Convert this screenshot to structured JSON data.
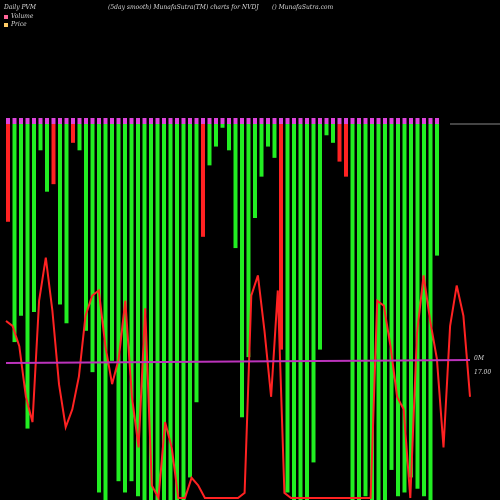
{
  "header": {
    "left": "Daily PVM",
    "center": "(5day smooth) MunafaSutra(TM) charts for NVDJ",
    "right": "() MunafaSutra.com"
  },
  "legend": [
    {
      "label": "Volume",
      "color": "#ff6699"
    },
    {
      "label": "Price",
      "color": "#ffcc66"
    }
  ],
  "colors": {
    "up": "#22ee22",
    "down": "#ff2222",
    "cap": "#dd44dd",
    "price_line": "#ff2222",
    "avg_line": "#bb33bb"
  },
  "chart_data": {
    "type": "bar",
    "title": "",
    "axis_labels": {
      "volume": "0M",
      "price": "17.00"
    },
    "grid": false,
    "bars": [
      {
        "dir": "down",
        "value": 0.26
      },
      {
        "dir": "up",
        "value": 0.58
      },
      {
        "dir": "up",
        "value": 0.51
      },
      {
        "dir": "up",
        "value": 0.81
      },
      {
        "dir": "up",
        "value": 0.5
      },
      {
        "dir": "up",
        "value": 0.07
      },
      {
        "dir": "up",
        "value": 0.18
      },
      {
        "dir": "down",
        "value": 0.16
      },
      {
        "dir": "up",
        "value": 0.48
      },
      {
        "dir": "up",
        "value": 0.53
      },
      {
        "dir": "down",
        "value": 0.05
      },
      {
        "dir": "up",
        "value": 0.07
      },
      {
        "dir": "up",
        "value": 0.55
      },
      {
        "dir": "up",
        "value": 0.66
      },
      {
        "dir": "up",
        "value": 0.98
      },
      {
        "dir": "up",
        "value": 1.0
      },
      {
        "dir": "up",
        "value": 0.63
      },
      {
        "dir": "up",
        "value": 0.95
      },
      {
        "dir": "up",
        "value": 0.98
      },
      {
        "dir": "up",
        "value": 0.95
      },
      {
        "dir": "up",
        "value": 0.99
      },
      {
        "dir": "up",
        "value": 1.0
      },
      {
        "dir": "up",
        "value": 1.0
      },
      {
        "dir": "up",
        "value": 1.0
      },
      {
        "dir": "up",
        "value": 1.0
      },
      {
        "dir": "up",
        "value": 1.0
      },
      {
        "dir": "up",
        "value": 1.0
      },
      {
        "dir": "up",
        "value": 1.0
      },
      {
        "dir": "up",
        "value": 0.94
      },
      {
        "dir": "up",
        "value": 0.74
      },
      {
        "dir": "down",
        "value": 0.3
      },
      {
        "dir": "up",
        "value": 0.11
      },
      {
        "dir": "up",
        "value": 0.06
      },
      {
        "dir": "up",
        "value": 0.01
      },
      {
        "dir": "up",
        "value": 0.07
      },
      {
        "dir": "up",
        "value": 0.33
      },
      {
        "dir": "up",
        "value": 0.78
      },
      {
        "dir": "up",
        "value": 0.62
      },
      {
        "dir": "up",
        "value": 0.25
      },
      {
        "dir": "up",
        "value": 0.14
      },
      {
        "dir": "up",
        "value": 0.06
      },
      {
        "dir": "up",
        "value": 0.09
      },
      {
        "dir": "down",
        "value": 0.6
      },
      {
        "dir": "up",
        "value": 0.98
      },
      {
        "dir": "up",
        "value": 1.0
      },
      {
        "dir": "up",
        "value": 1.0
      },
      {
        "dir": "up",
        "value": 1.0
      },
      {
        "dir": "up",
        "value": 0.9
      },
      {
        "dir": "up",
        "value": 0.6
      },
      {
        "dir": "up",
        "value": 0.03
      },
      {
        "dir": "up",
        "value": 0.05
      },
      {
        "dir": "down",
        "value": 0.1
      },
      {
        "dir": "down",
        "value": 0.14
      },
      {
        "dir": "up",
        "value": 1.0
      },
      {
        "dir": "up",
        "value": 1.0
      },
      {
        "dir": "up",
        "value": 0.99
      },
      {
        "dir": "up",
        "value": 1.0
      },
      {
        "dir": "up",
        "value": 1.0
      },
      {
        "dir": "up",
        "value": 1.0
      },
      {
        "dir": "up",
        "value": 0.92
      },
      {
        "dir": "up",
        "value": 0.99
      },
      {
        "dir": "up",
        "value": 0.98
      },
      {
        "dir": "up",
        "value": 0.94
      },
      {
        "dir": "up",
        "value": 0.97
      },
      {
        "dir": "up",
        "value": 0.99
      },
      {
        "dir": "up",
        "value": 1.0
      },
      {
        "dir": "up",
        "value": 0.35
      }
    ],
    "price_path": [
      70,
      68,
      60,
      40,
      30,
      78,
      95,
      74,
      45,
      28,
      35,
      48,
      72,
      80,
      82,
      60,
      45,
      55,
      78,
      40,
      20,
      75,
      5,
      0,
      30,
      20,
      0,
      0,
      8,
      5,
      0,
      0,
      0,
      0,
      0,
      0,
      2,
      80,
      88,
      66,
      40,
      82,
      2,
      0,
      0,
      0,
      0,
      0,
      0,
      0,
      0,
      0,
      0,
      0,
      0,
      0,
      78,
      76,
      60,
      40,
      35,
      0,
      65,
      88,
      70,
      55,
      20,
      68,
      84,
      72,
      40
    ]
  }
}
